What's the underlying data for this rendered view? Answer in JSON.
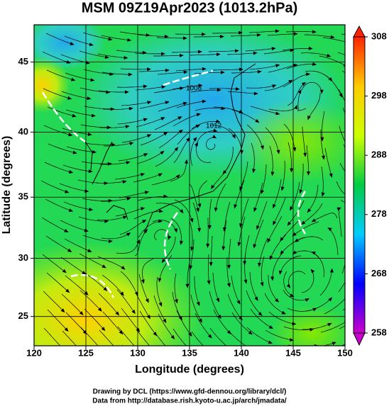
{
  "chart_data": {
    "type": "map",
    "title": "MSM 09Z19Apr2023 (1013.2hPa)",
    "x_label": "Longitude (degrees)",
    "y_label": "Latitude  (degrees)",
    "projection": "mercator",
    "xlim": [
      120,
      150
    ],
    "ylim": [
      22.4,
      47.5
    ],
    "xticks": [
      120,
      125,
      130,
      135,
      140,
      145,
      150
    ],
    "yticks": [
      25,
      30,
      35,
      40,
      45
    ],
    "grid": true,
    "colorbar": {
      "lim": [
        258,
        308
      ],
      "ticks": [
        258,
        268,
        278,
        288,
        298,
        308
      ],
      "colors": [
        "#cc00cc",
        "#0000ff",
        "#00ccff",
        "#00cc44",
        "#ccff00",
        "#ffcc00",
        "#ff2200"
      ]
    },
    "contour_labels": [
      "1008",
      "1012"
    ],
    "credits": [
      "Drawing by DCL (https://www.gfd-dennou.org/library/dcl/)",
      "Data from http://database.rish.kyoto-u.ac.jp/arch/jmadata/"
    ]
  }
}
